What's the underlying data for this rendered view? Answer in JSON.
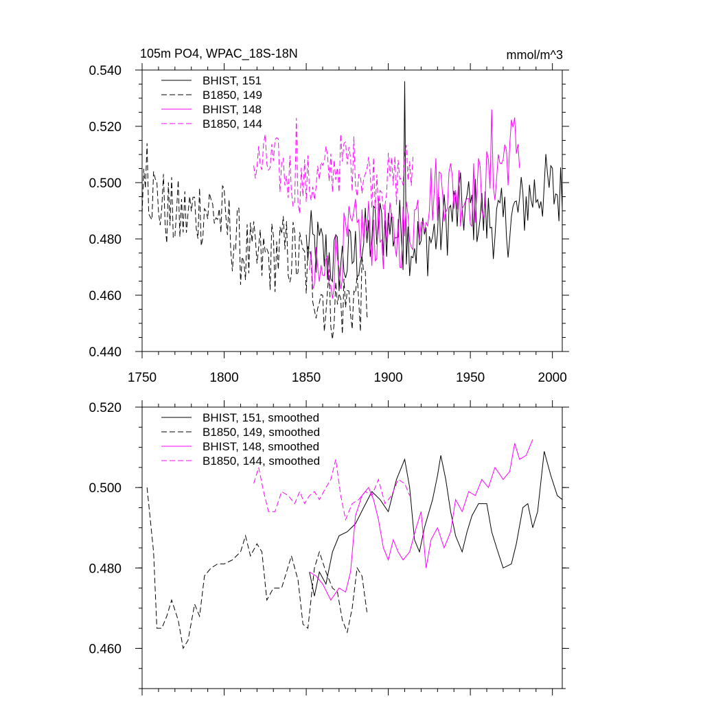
{
  "chart_data": [
    {
      "type": "line",
      "title": "105m PO4, WPAC_18S-18N",
      "units": "mmol/m^3",
      "xlim": [
        1750,
        2006
      ],
      "ylim": [
        0.44,
        0.54
      ],
      "x_ticks": [
        1750,
        1800,
        1850,
        1900,
        1950,
        2000
      ],
      "x_tick_labels": [
        "1750",
        "1800",
        "1850",
        "1900",
        "1950",
        "2000"
      ],
      "y_ticks": [
        0.44,
        0.46,
        0.48,
        0.5,
        0.52,
        0.54
      ],
      "y_tick_labels": [
        "0.440",
        "0.460",
        "0.480",
        "0.500",
        "0.520",
        "0.540"
      ],
      "legend_position": "top-left",
      "grid": false,
      "series": [
        {
          "name": "BHIST, 151",
          "color": "#000000",
          "dash": "solid",
          "x_range": [
            1850,
            2006
          ],
          "start": 0.473,
          "end": 0.495,
          "amp": 0.013,
          "peak": {
            "x": 1910,
            "y": 0.536
          }
        },
        {
          "name": "B1850, 149",
          "color": "#000000",
          "dash": "dashed",
          "x_range": [
            1750,
            1888
          ],
          "start": 0.499,
          "end": 0.455,
          "amp": 0.014,
          "peak": {
            "x": 1753,
            "y": 0.514
          }
        },
        {
          "name": "BHIST, 148",
          "color": "#ff00ff",
          "dash": "solid",
          "x_range": [
            1852,
            1980
          ],
          "start": 0.468,
          "end": 0.51,
          "amp": 0.013,
          "peak": {
            "x": 1963,
            "y": 0.526
          }
        },
        {
          "name": "B1850, 144",
          "color": "#ff00ff",
          "dash": "dashed",
          "x_range": [
            1818,
            1915
          ],
          "start": 0.503,
          "end": 0.504,
          "amp": 0.011,
          "peak": {
            "x": 1844,
            "y": 0.523
          }
        }
      ]
    },
    {
      "type": "line",
      "xlim": [
        1750,
        2006
      ],
      "ylim": [
        0.45,
        0.52
      ],
      "x_ticks": [
        1750,
        1800,
        1850,
        1900,
        1950,
        2000
      ],
      "y_ticks": [
        0.46,
        0.48,
        0.5,
        0.52
      ],
      "y_tick_labels": [
        "0.460",
        "0.480",
        "0.500",
        "0.520"
      ],
      "legend_position": "top-left",
      "grid": false,
      "series": [
        {
          "name": "BHIST, 151, smoothed",
          "color": "#000000",
          "dash": "solid",
          "points": [
            [
              1852,
              0.479
            ],
            [
              1855,
              0.473
            ],
            [
              1858,
              0.479
            ],
            [
              1862,
              0.476
            ],
            [
              1866,
              0.484
            ],
            [
              1870,
              0.488
            ],
            [
              1875,
              0.489
            ],
            [
              1880,
              0.491
            ],
            [
              1885,
              0.495
            ],
            [
              1890,
              0.499
            ],
            [
              1895,
              0.497
            ],
            [
              1900,
              0.494
            ],
            [
              1905,
              0.502
            ],
            [
              1910,
              0.507
            ],
            [
              1913,
              0.5
            ],
            [
              1916,
              0.487
            ],
            [
              1919,
              0.484
            ],
            [
              1922,
              0.49
            ],
            [
              1927,
              0.497
            ],
            [
              1930,
              0.503
            ],
            [
              1932,
              0.508
            ],
            [
              1935,
              0.502
            ],
            [
              1938,
              0.494
            ],
            [
              1941,
              0.488
            ],
            [
              1945,
              0.484
            ],
            [
              1948,
              0.489
            ],
            [
              1951,
              0.493
            ],
            [
              1955,
              0.496
            ],
            [
              1960,
              0.496
            ],
            [
              1963,
              0.489
            ],
            [
              1966,
              0.485
            ],
            [
              1970,
              0.48
            ],
            [
              1975,
              0.481
            ],
            [
              1978,
              0.486
            ],
            [
              1982,
              0.495
            ],
            [
              1985,
              0.496
            ],
            [
              1988,
              0.49
            ],
            [
              1991,
              0.494
            ],
            [
              1995,
              0.509
            ],
            [
              1999,
              0.503
            ],
            [
              2003,
              0.498
            ],
            [
              2006,
              0.497
            ]
          ]
        },
        {
          "name": "B1850, 149, smoothed",
          "color": "#000000",
          "dash": "dashed",
          "points": [
            [
              1753,
              0.5
            ],
            [
              1757,
              0.484
            ],
            [
              1759,
              0.465
            ],
            [
              1762,
              0.465
            ],
            [
              1765,
              0.468
            ],
            [
              1768,
              0.472
            ],
            [
              1772,
              0.467
            ],
            [
              1775,
              0.46
            ],
            [
              1778,
              0.462
            ],
            [
              1782,
              0.471
            ],
            [
              1785,
              0.468
            ],
            [
              1788,
              0.478
            ],
            [
              1792,
              0.48
            ],
            [
              1796,
              0.481
            ],
            [
              1800,
              0.481
            ],
            [
              1805,
              0.482
            ],
            [
              1810,
              0.484
            ],
            [
              1813,
              0.488
            ],
            [
              1816,
              0.483
            ],
            [
              1820,
              0.486
            ],
            [
              1823,
              0.484
            ],
            [
              1826,
              0.472
            ],
            [
              1830,
              0.475
            ],
            [
              1835,
              0.475
            ],
            [
              1838,
              0.479
            ],
            [
              1841,
              0.483
            ],
            [
              1845,
              0.477
            ],
            [
              1848,
              0.466
            ],
            [
              1851,
              0.465
            ],
            [
              1855,
              0.48
            ],
            [
              1858,
              0.484
            ],
            [
              1862,
              0.479
            ],
            [
              1866,
              0.475
            ],
            [
              1869,
              0.474
            ],
            [
              1872,
              0.467
            ],
            [
              1875,
              0.464
            ],
            [
              1878,
              0.47
            ],
            [
              1881,
              0.48
            ],
            [
              1884,
              0.478
            ],
            [
              1887,
              0.469
            ]
          ]
        },
        {
          "name": "BHIST, 148, smoothed",
          "color": "#ff00ff",
          "dash": "solid",
          "points": [
            [
              1852,
              0.479
            ],
            [
              1856,
              0.478
            ],
            [
              1860,
              0.476
            ],
            [
              1865,
              0.472
            ],
            [
              1870,
              0.475
            ],
            [
              1874,
              0.474
            ],
            [
              1877,
              0.479
            ],
            [
              1880,
              0.493
            ],
            [
              1884,
              0.498
            ],
            [
              1888,
              0.5
            ],
            [
              1891,
              0.497
            ],
            [
              1894,
              0.492
            ],
            [
              1897,
              0.485
            ],
            [
              1900,
              0.482
            ],
            [
              1903,
              0.487
            ],
            [
              1906,
              0.484
            ],
            [
              1909,
              0.482
            ],
            [
              1913,
              0.484
            ],
            [
              1917,
              0.49
            ],
            [
              1920,
              0.494
            ],
            [
              1923,
              0.48
            ],
            [
              1926,
              0.487
            ],
            [
              1930,
              0.49
            ],
            [
              1934,
              0.485
            ],
            [
              1938,
              0.489
            ],
            [
              1941,
              0.497
            ],
            [
              1945,
              0.494
            ],
            [
              1949,
              0.499
            ],
            [
              1953,
              0.498
            ],
            [
              1957,
              0.502
            ],
            [
              1961,
              0.5
            ],
            [
              1965,
              0.505
            ],
            [
              1970,
              0.502
            ],
            [
              1974,
              0.504
            ],
            [
              1977,
              0.511
            ],
            [
              1980,
              0.507
            ],
            [
              1984,
              0.508
            ],
            [
              1988,
              0.512
            ]
          ]
        },
        {
          "name": "B1850, 144, smoothed",
          "color": "#ff00ff",
          "dash": "dashed",
          "points": [
            [
              1818,
              0.501
            ],
            [
              1821,
              0.505
            ],
            [
              1824,
              0.499
            ],
            [
              1827,
              0.494
            ],
            [
              1831,
              0.494
            ],
            [
              1835,
              0.499
            ],
            [
              1839,
              0.498
            ],
            [
              1843,
              0.496
            ],
            [
              1846,
              0.499
            ],
            [
              1849,
              0.496
            ],
            [
              1852,
              0.498
            ],
            [
              1855,
              0.499
            ],
            [
              1858,
              0.497
            ],
            [
              1862,
              0.5
            ],
            [
              1865,
              0.502
            ],
            [
              1868,
              0.507
            ],
            [
              1871,
              0.498
            ],
            [
              1874,
              0.492
            ],
            [
              1878,
              0.496
            ],
            [
              1882,
              0.497
            ],
            [
              1886,
              0.499
            ],
            [
              1890,
              0.498
            ],
            [
              1894,
              0.502
            ],
            [
              1898,
              0.496
            ],
            [
              1902,
              0.498
            ],
            [
              1906,
              0.502
            ],
            [
              1910,
              0.501
            ],
            [
              1913,
              0.498
            ]
          ]
        }
      ]
    }
  ]
}
